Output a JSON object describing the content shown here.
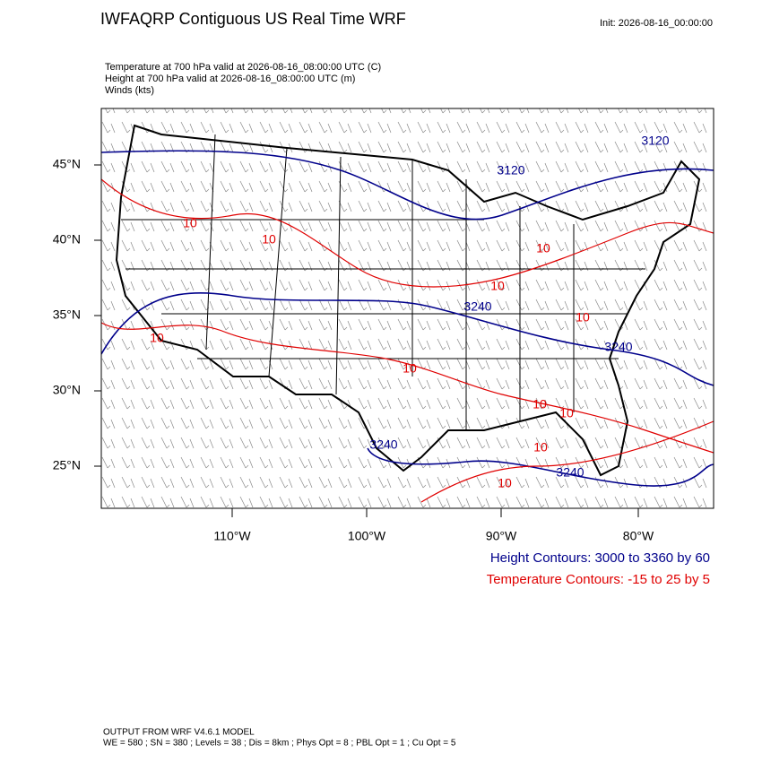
{
  "header": {
    "title": "IWFAQRP Contiguous US Real Time WRF",
    "init": "Init: 2026-08-16_00:00:00",
    "fields": [
      "Temperature at 700 hPa valid at 2026-08-16_08:00:00 UTC   (C)",
      "Height at 700 hPa valid at 2026-08-16_08:00:00 UTC   (m)",
      "Winds   (kts)"
    ]
  },
  "map": {
    "lat_labels": [
      "45°N",
      "40°N",
      "35°N",
      "30°N",
      "25°N"
    ],
    "lon_labels": [
      "110°W",
      "100°W",
      "90°W",
      "80°W"
    ],
    "height_labels": [
      "3120",
      "3120",
      "3240",
      "3240",
      "3240",
      "3240"
    ],
    "temperature_labels": [
      "10",
      "10",
      "10",
      "10",
      "10",
      "10",
      "10",
      "10",
      "10",
      "10",
      "10"
    ]
  },
  "legend": {
    "height": "Height Contours: 3000 to 3360 by 60",
    "temperature": "Temperature Contours: -15 to 25 by 5"
  },
  "footer": [
    "OUTPUT FROM WRF V4.6.1 MODEL",
    "WE = 580 ; SN = 380 ; Levels = 38 ; Dis = 8km ; Phys Opt = 8 ; PBL Opt = 1 ; Cu Opt = 5"
  ]
}
